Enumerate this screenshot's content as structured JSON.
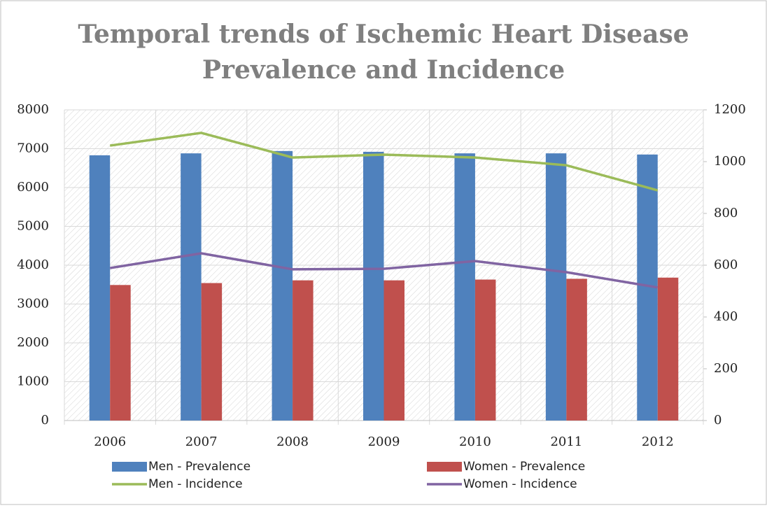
{
  "chart_data": {
    "type": "bar",
    "title": [
      "Temporal trends of Ischemic Heart Disease",
      "Prevalence and Incidence"
    ],
    "categories": [
      "2006",
      "2007",
      "2008",
      "2009",
      "2010",
      "2011",
      "2012"
    ],
    "series": [
      {
        "name": "Men - Prevalence",
        "color": "#4f81bd",
        "type": "bar",
        "values": [
          6830,
          6880,
          6940,
          6920,
          6880,
          6880,
          6850
        ]
      },
      {
        "name": "Women - Prevalence",
        "color": "#c0504d",
        "type": "bar",
        "values": [
          3490,
          3540,
          3610,
          3610,
          3630,
          3650,
          3680
        ]
      },
      {
        "name": "Men - Incidence",
        "color": "#9bbb59",
        "type": "line",
        "axis": "y2",
        "values": [
          1062,
          1111,
          1016,
          1027,
          1016,
          986,
          889
        ]
      },
      {
        "name": "Women - Incidence",
        "color": "#8064a2",
        "type": "line",
        "axis": "y2",
        "values": [
          589,
          646,
          584,
          586,
          616,
          573,
          514
        ]
      }
    ],
    "ylim": [
      0,
      8000
    ],
    "yticks": [
      0,
      1000,
      2000,
      3000,
      4000,
      5000,
      6000,
      7000,
      8000
    ],
    "y2lim": [
      0,
      1200
    ],
    "y2ticks": [
      0,
      200,
      400,
      600,
      800,
      1000,
      1200
    ],
    "grid": true,
    "legend": "bottom"
  }
}
